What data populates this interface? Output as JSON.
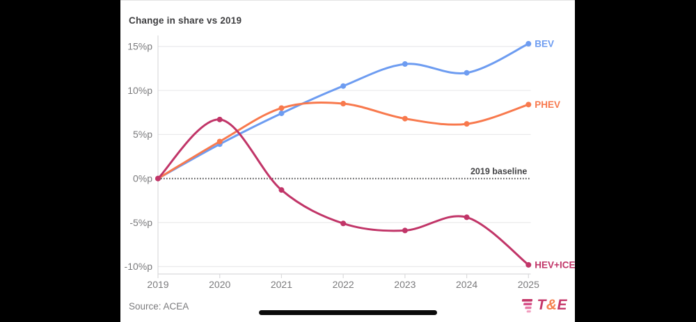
{
  "header": {
    "title": "Change in share vs 2019"
  },
  "chart_data": {
    "type": "line",
    "title": "Change in share vs 2019",
    "x": [
      2019,
      2020,
      2021,
      2022,
      2023,
      2024,
      2025
    ],
    "xlabel": "",
    "ylabel": "",
    "ylim": [
      -10.5,
      15.5
    ],
    "ytick_suffix": "%p",
    "yticks": [
      {
        "value": 15,
        "label": "15%p"
      },
      {
        "value": 10,
        "label": "10%p"
      },
      {
        "value": 5,
        "label": "5%p"
      },
      {
        "value": 0,
        "label": "0%p"
      },
      {
        "value": -5,
        "label": "-5%p"
      },
      {
        "value": -10,
        "label": "-10%p"
      }
    ],
    "baseline": {
      "value": 0,
      "label": "2019 baseline"
    },
    "series": [
      {
        "name": "BEV",
        "color": "#6D9CF1",
        "values": [
          0,
          3.9,
          7.4,
          10.5,
          13.0,
          12.0,
          15.3
        ]
      },
      {
        "name": "PHEV",
        "color": "#F8794D",
        "values": [
          0,
          4.2,
          8.0,
          8.5,
          6.8,
          6.2,
          8.4
        ]
      },
      {
        "name": "HEV+ICE",
        "color": "#C13568",
        "values": [
          0,
          6.7,
          -1.3,
          -5.1,
          -5.9,
          -4.4,
          -9.8
        ]
      }
    ],
    "grid": "horizontal",
    "legend_position": "line-end"
  },
  "footer": {
    "source": "Source: ACEA"
  },
  "logo": {
    "t": "T",
    "amp": "&",
    "e": "E",
    "t_color": "#C53769",
    "amp_color": "#F5814D",
    "e_color": "#C53769",
    "mark_colors": [
      "#C53769",
      "#D65089",
      "#E778A6",
      "#F29FC0"
    ]
  },
  "colors": {
    "letterbox": "#000000",
    "card_background": "#FFFFFF",
    "gridline": "#E9E9EB",
    "axis": "#DADADC",
    "axis_text": "#7a7a7c",
    "title_text": "#3E3E40",
    "baseline_line": "#4A4A4C",
    "baseline_text": "#424244",
    "home_indicator": "#0B0B0B"
  }
}
